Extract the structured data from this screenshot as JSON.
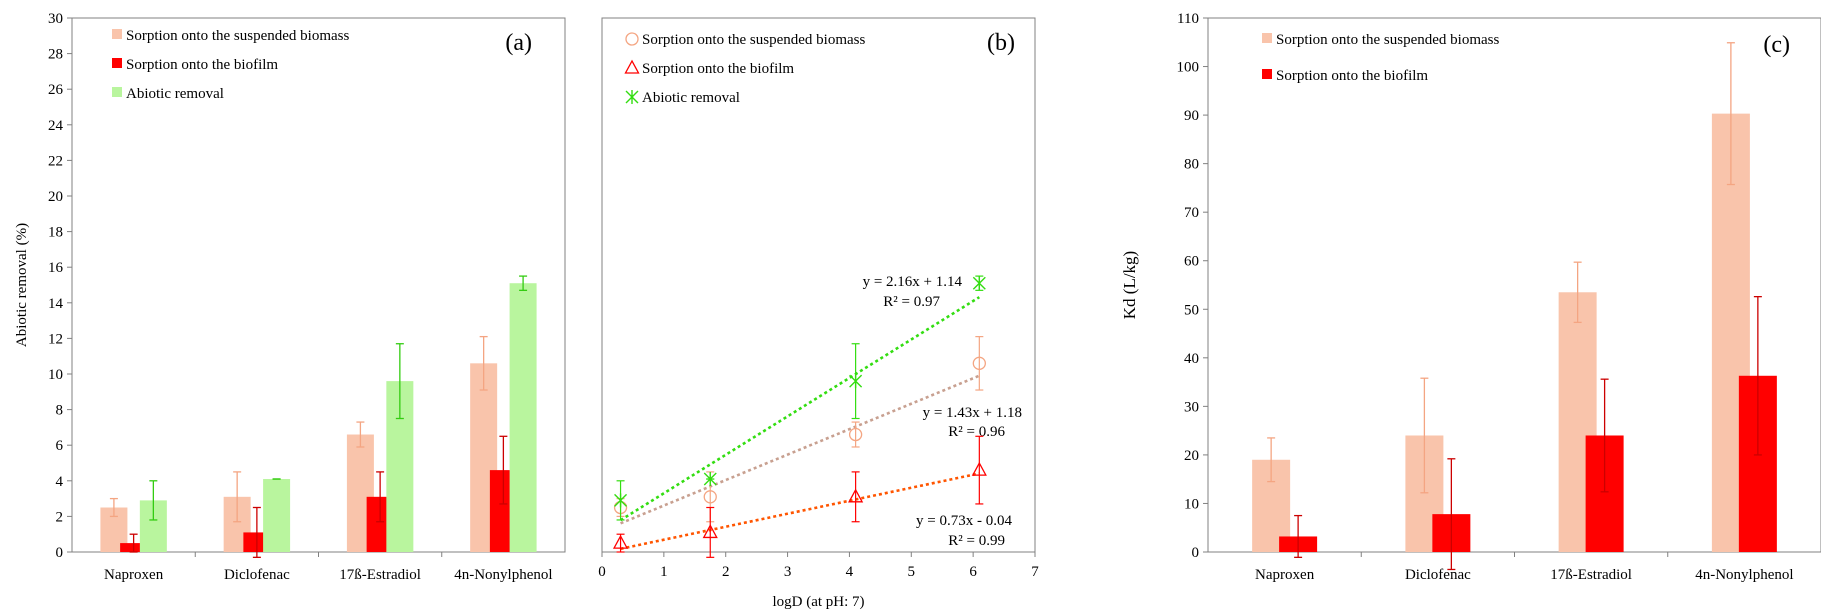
{
  "chart_data": [
    {
      "type": "bar",
      "panel_label": "(a)",
      "ylabel": "Abiotic removal (%)",
      "xlabel": "",
      "ylim": [
        0,
        30
      ],
      "yticks": [
        0,
        2,
        4,
        6,
        8,
        10,
        12,
        14,
        16,
        18,
        20,
        22,
        24,
        26,
        28,
        30
      ],
      "categories": [
        "Naproxen",
        "Diclofenac",
        "17ß-Estradiol",
        "4n-Nonylphenol"
      ],
      "grid": false,
      "legend_position": "top-left",
      "series": [
        {
          "name": "Sorption onto the suspended biomass",
          "color": "#f9c4ab",
          "values": [
            2.5,
            3.1,
            6.6,
            10.6
          ],
          "errors": [
            0.5,
            1.4,
            0.7,
            1.5
          ]
        },
        {
          "name": "Sorption onto the biofilm",
          "color": "#ff0000",
          "values": [
            0.5,
            1.1,
            3.1,
            4.6
          ],
          "errors": [
            0.5,
            1.4,
            1.4,
            1.9
          ]
        },
        {
          "name": "Abiotic removal",
          "color": "#b9f59e",
          "values": [
            2.9,
            4.1,
            9.6,
            15.1
          ],
          "errors": [
            1.1,
            0.0,
            2.1,
            0.4
          ]
        }
      ]
    },
    {
      "type": "scatter",
      "panel_label": "(b)",
      "xlabel": "logD (at pH: 7)",
      "ylabel": "",
      "xlim": [
        0,
        7
      ],
      "ylim": [
        0,
        30
      ],
      "xticks": [
        0,
        1,
        2,
        3,
        4,
        5,
        6,
        7
      ],
      "grid": false,
      "legend_position": "top-left",
      "series": [
        {
          "name": "Sorption onto the suspended biomass",
          "marker": "circle",
          "color": "#f4a582",
          "x": [
            0.3,
            1.75,
            4.1,
            6.1
          ],
          "y": [
            2.5,
            3.1,
            6.6,
            10.6
          ],
          "errors": [
            0.5,
            1.4,
            0.7,
            1.5
          ],
          "trend_color": "#c8a090",
          "trend": {
            "slope": 1.43,
            "intercept": 1.18
          },
          "equation": "y = 1.43x + 1.18",
          "r2": "R² = 0.96"
        },
        {
          "name": "Sorption onto the biofilm",
          "marker": "triangle",
          "color": "#ff0000",
          "x": [
            0.3,
            1.75,
            4.1,
            6.1
          ],
          "y": [
            0.5,
            1.1,
            3.1,
            4.6
          ],
          "errors": [
            0.5,
            1.4,
            1.4,
            1.9
          ],
          "trend_color": "#ff5500",
          "trend": {
            "slope": 0.73,
            "intercept": -0.04
          },
          "equation": "y = 0.73x - 0.04",
          "r2": "R² = 0.99"
        },
        {
          "name": "Abiotic removal",
          "marker": "asterisk",
          "color": "#33dd11",
          "x": [
            0.3,
            1.75,
            4.1,
            6.1
          ],
          "y": [
            2.9,
            4.1,
            9.6,
            15.1
          ],
          "errors": [
            1.1,
            0.0,
            2.1,
            0.4
          ],
          "trend_color": "#33dd11",
          "trend": {
            "slope": 2.16,
            "intercept": 1.14
          },
          "equation": "y = 2.16x + 1.14",
          "r2": "R² = 0.97"
        }
      ]
    },
    {
      "type": "bar",
      "panel_label": "(c)",
      "ylabel": "Kd (L/kg)",
      "xlabel": "",
      "ylim": [
        0,
        110
      ],
      "yticks": [
        0,
        10,
        20,
        30,
        40,
        50,
        60,
        70,
        80,
        90,
        100,
        110
      ],
      "categories": [
        "Naproxen",
        "Diclofenac",
        "17ß-Estradiol",
        "4n-Nonylphenol"
      ],
      "grid": false,
      "legend_position": "top-left",
      "series": [
        {
          "name": "Sorption onto the suspended biomass",
          "color": "#f9c4ab",
          "values": [
            19,
            24,
            53.5,
            90.3
          ],
          "errors": [
            4.5,
            11.8,
            6.2,
            14.6
          ]
        },
        {
          "name": "Sorption onto the biofilm",
          "color": "#ff0000",
          "values": [
            3.2,
            7.8,
            24,
            36.3
          ],
          "errors": [
            4.3,
            11.4,
            11.6,
            16.3
          ]
        }
      ]
    }
  ]
}
